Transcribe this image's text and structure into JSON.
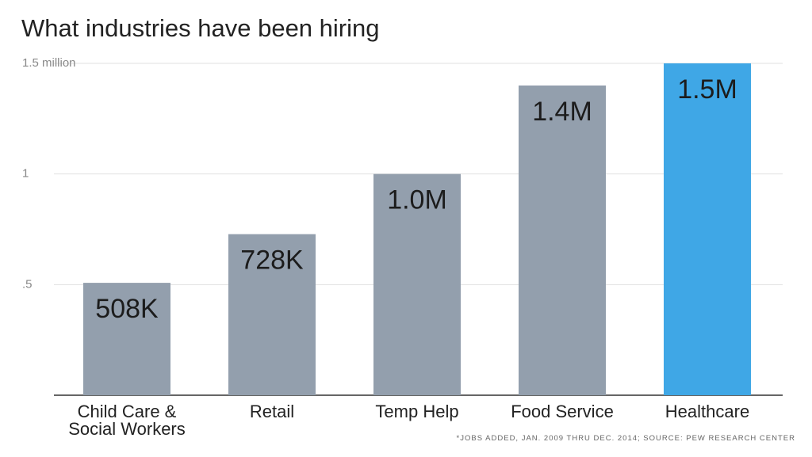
{
  "chart_data": {
    "type": "bar",
    "title": "What industries have been hiring",
    "ylabel": "",
    "xlabel": "",
    "ylim": [
      0,
      1.5
    ],
    "yticks": [
      {
        "value": 0.5,
        "label": ".5"
      },
      {
        "value": 1.0,
        "label": "1"
      },
      {
        "value": 1.5,
        "label": "1.5 million"
      }
    ],
    "grid": true,
    "bars": [
      {
        "lines": [
          "Child Care &",
          "Social Workers"
        ],
        "value": 0.508,
        "label": "508K",
        "color": "#939fad"
      },
      {
        "lines": [
          "Retail"
        ],
        "value": 0.728,
        "label": "728K",
        "color": "#939fad"
      },
      {
        "lines": [
          "Temp Help"
        ],
        "value": 1.0,
        "label": "1.0M",
        "color": "#939fad"
      },
      {
        "lines": [
          "Food Service"
        ],
        "value": 1.4,
        "label": "1.4M",
        "color": "#939fad"
      },
      {
        "lines": [
          "Healthcare"
        ],
        "value": 1.5,
        "label": "1.5M",
        "color": "#3fa7e6"
      }
    ],
    "footnote": "*JOBS ADDED, JAN. 2009 THRU DEC. 2014; SOURCE: PEW RESEARCH CENTER"
  }
}
